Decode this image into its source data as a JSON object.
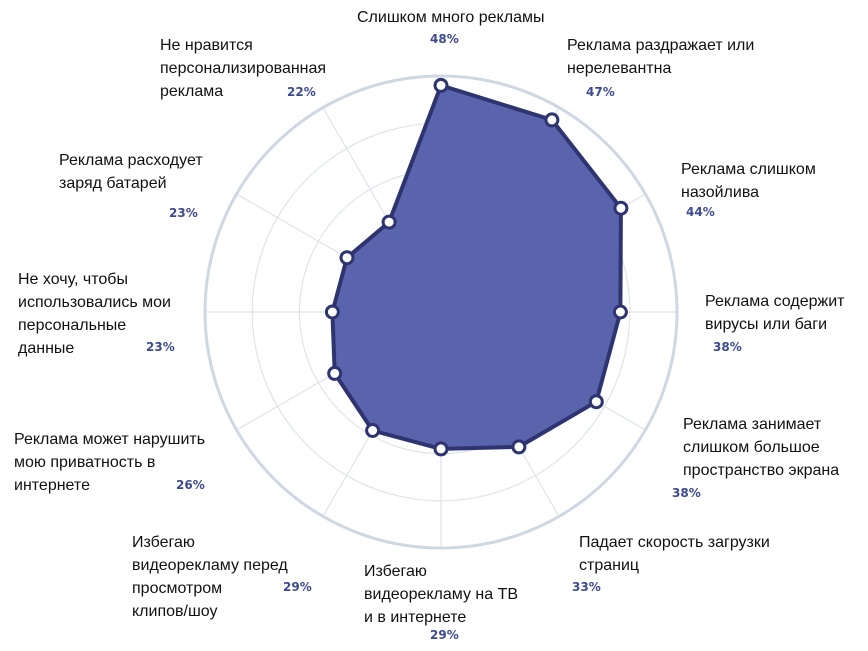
{
  "chart_data": {
    "type": "radar",
    "title": "",
    "categories": [
      "Слишком много рекламы",
      "Реклама раздражает или\nнерелевантна",
      "Реклама слишком\nназойлива",
      "Реклама содержит\nвирусы или баги",
      "Реклама занимает\nслишком большое\nпространство экрана",
      "Падает скорость загрузки\nстраниц",
      "Избегаю\nвидеорекламу на ТВ\nи в интернете",
      "Избегаю\nвидеорекламу перед\nпросмотром\nклипов/шоу",
      "Реклама может нарушить\nмою приватность в\nинтернете",
      "Не хочу, чтобы\nиспользовались мои\nперсональные\nданные",
      "Реклама расходует\nзаряд батарей",
      "Не нравится\nперсонализированная\nреклама"
    ],
    "values": [
      48,
      47,
      44,
      38,
      38,
      33,
      29,
      29,
      26,
      23,
      23,
      22
    ],
    "value_labels": [
      "48%",
      "47%",
      "44%",
      "38%",
      "38%",
      "33%",
      "29%",
      "29%",
      "26%",
      "23%",
      "23%",
      "22%"
    ],
    "rlim": [
      0,
      50
    ],
    "grid": true,
    "colors": {
      "fill": "#5a64ad",
      "stroke": "#2e3470",
      "grid": "#dfe4ea",
      "outer_ring": "#cfd8e2",
      "marker_fill": "#ffffff",
      "percent_text": "#3e4a8f"
    }
  }
}
